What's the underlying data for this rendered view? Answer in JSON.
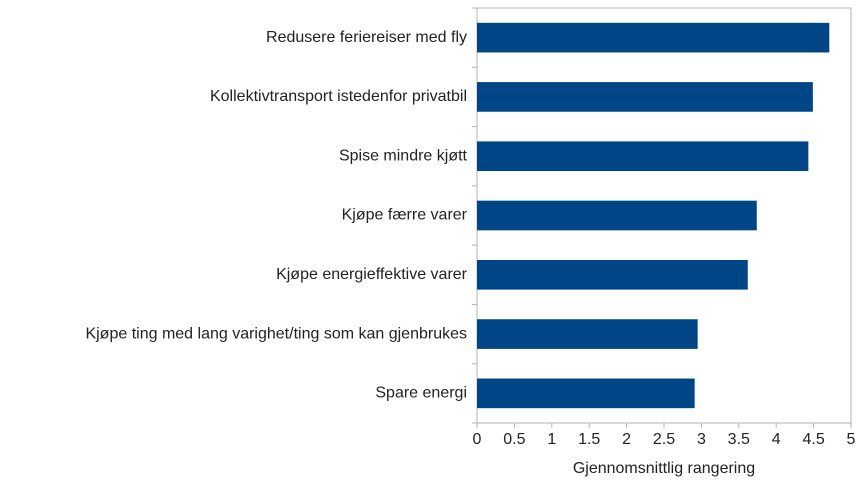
{
  "chart_data": {
    "type": "bar",
    "orientation": "horizontal",
    "categories": [
      "Redusere feriereiser med fly",
      "Kollektivtransport istedenfor privatbil",
      "Spise mindre kjøtt",
      "Kjøpe færre varer",
      "Kjøpe energieffektive varer",
      "Kjøpe ting med lang varighet/ting som kan gjenbrukes",
      "Spare energi"
    ],
    "values": [
      4.71,
      4.49,
      4.43,
      3.74,
      3.62,
      2.95,
      2.91
    ],
    "color": "#004586",
    "xlabel": "Gjennomsnittlig rangering",
    "xlim": [
      0,
      5
    ],
    "xticks": [
      0,
      0.5,
      1,
      1.5,
      2,
      2.5,
      3,
      3.5,
      4,
      4.5,
      5
    ],
    "grid": false
  }
}
